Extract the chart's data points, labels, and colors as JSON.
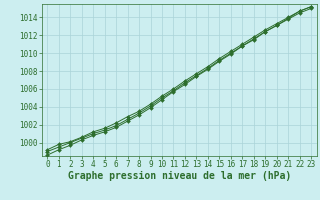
{
  "title": "Graphe pression niveau de la mer (hPa)",
  "background_color": "#cceef0",
  "grid_color": "#aad4d8",
  "line_color": "#2d6e2d",
  "x_hours": [
    0,
    1,
    2,
    3,
    4,
    5,
    6,
    7,
    8,
    9,
    10,
    11,
    12,
    13,
    14,
    15,
    16,
    17,
    18,
    19,
    20,
    21,
    22,
    23
  ],
  "line1": [
    999.2,
    999.8,
    1000.1,
    1000.6,
    1001.2,
    1001.6,
    1002.2,
    1002.9,
    1003.5,
    1004.3,
    1005.2,
    1006.0,
    1006.9,
    1007.7,
    1008.5,
    1009.4,
    1010.2,
    1011.0,
    1011.8,
    1012.6,
    1013.3,
    1014.0,
    1014.7,
    1015.2
  ],
  "line2": [
    999.0,
    999.5,
    1000.0,
    1000.5,
    1001.0,
    1001.4,
    1001.9,
    1002.6,
    1003.3,
    1004.1,
    1005.0,
    1005.8,
    1006.7,
    1007.5,
    1008.3,
    1009.2,
    1010.0,
    1010.8,
    1011.6,
    1012.4,
    1013.1,
    1013.8,
    1014.5,
    1015.0
  ],
  "line3": [
    998.6,
    999.2,
    999.7,
    1000.3,
    1000.8,
    1001.2,
    1001.7,
    1002.4,
    1003.1,
    1003.9,
    1004.8,
    1005.7,
    1006.5,
    1007.4,
    1008.2,
    1009.1,
    1009.9,
    1010.8,
    1011.5,
    1012.4,
    1013.1,
    1013.9,
    1014.7,
    1015.2
  ],
  "ylim": [
    998.5,
    1015.5
  ],
  "yticks": [
    1000,
    1002,
    1004,
    1006,
    1008,
    1010,
    1012,
    1014
  ],
  "xlim_min": -0.5,
  "xlim_max": 23.5,
  "xticks": [
    0,
    1,
    2,
    3,
    4,
    5,
    6,
    7,
    8,
    9,
    10,
    11,
    12,
    13,
    14,
    15,
    16,
    17,
    18,
    19,
    20,
    21,
    22,
    23
  ],
  "marker": "D",
  "marker_size": 2.0,
  "line_width": 0.7,
  "title_fontsize": 7.0,
  "tick_fontsize": 5.5,
  "tick_color": "#2d6e2d",
  "spine_color": "#2d6e2d"
}
